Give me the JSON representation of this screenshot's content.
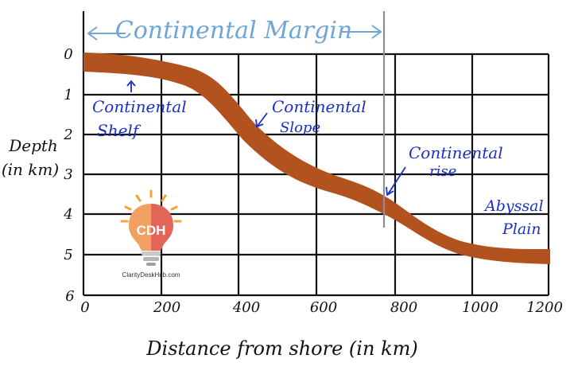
{
  "margin_label": "Continental Margin",
  "y_axis": {
    "title_line1": "Depth",
    "title_line2": "(in km)",
    "ticks": [
      "0",
      "1",
      "2",
      "3",
      "4",
      "5",
      "6"
    ]
  },
  "x_axis": {
    "title": "Distance from shore (in km)",
    "ticks": [
      "0",
      "200",
      "400",
      "600",
      "800",
      "1000",
      "1200"
    ]
  },
  "zones": {
    "shelf_line1": "Continental",
    "shelf_line2": "Shelf",
    "slope_line1": "Continental",
    "slope_line2": "Slope",
    "rise_line1": "Continental",
    "rise_line2": "rise",
    "plain_line1": "Abyssal",
    "plain_line2": "Plain"
  },
  "logo": {
    "text": "CDH",
    "caption": "ClarityDeskHub.com"
  },
  "colors": {
    "profile": "#b2521e",
    "annotation": "#1a2ec8",
    "margin": "#6fa6d6",
    "grid": "#111111"
  }
}
